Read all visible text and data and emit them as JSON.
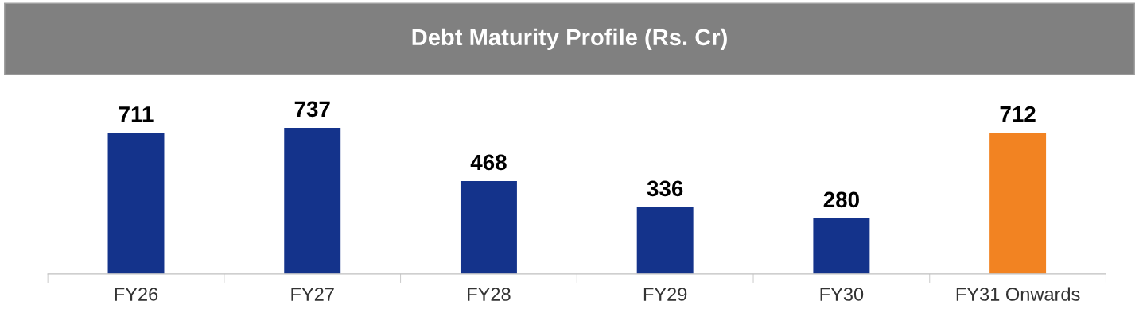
{
  "chart_data": {
    "type": "bar",
    "title": "Debt Maturity Profile (Rs. Cr)",
    "categories": [
      "FY26",
      "FY27",
      "FY28",
      "FY29",
      "FY30",
      "FY31 Onwards"
    ],
    "values": [
      711,
      737,
      468,
      336,
      280,
      712
    ],
    "colors": [
      "#14338b",
      "#14338b",
      "#14338b",
      "#14338b",
      "#14338b",
      "#f28322"
    ],
    "data_labels": true,
    "grid": false,
    "legend": false
  }
}
